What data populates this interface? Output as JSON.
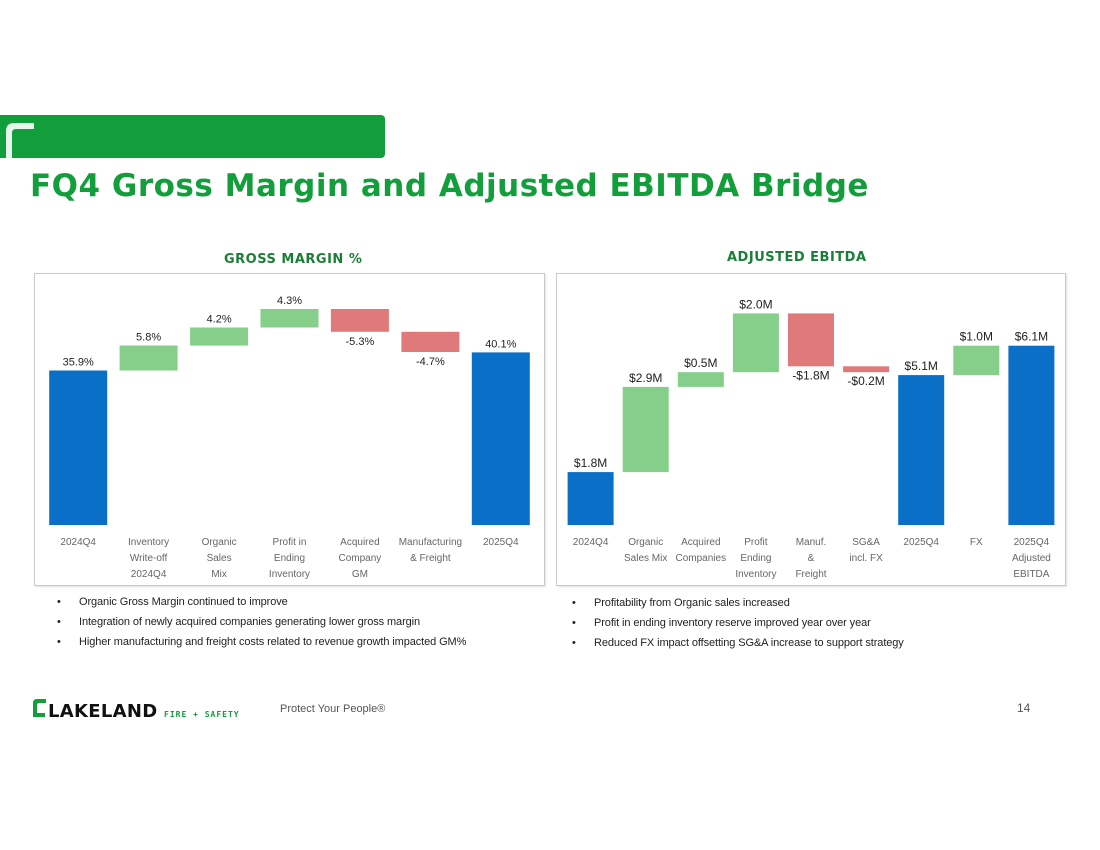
{
  "page": {
    "title": "FQ4 Gross Margin and Adjusted EBITDA Bridge",
    "page_number": "14"
  },
  "colors": {
    "brand_green": "#139e3c",
    "total_blue": "#0a6fc7",
    "increase_green": "#86cf8a",
    "decrease_red": "#e07a7a"
  },
  "footer": {
    "logo_text": "LAKELAND",
    "logo_sub": "FIRE + SAFETY",
    "tagline": "Protect Your People®"
  },
  "chart_data": [
    {
      "type": "bar",
      "subtype": "waterfall",
      "title": "GROSS MARGIN %",
      "categories": [
        [
          "2024Q4"
        ],
        [
          "Inventory",
          "Write-off",
          "2024Q4"
        ],
        [
          "Organic",
          "Sales",
          "Mix"
        ],
        [
          "Profit in",
          "Ending",
          "Inventory"
        ],
        [
          "Acquired",
          "Company",
          "GM"
        ],
        [
          "Manufacturing",
          "& Freight"
        ],
        [
          "2025Q4"
        ]
      ],
      "labels": [
        "35.9%",
        "5.8%",
        "4.2%",
        "4.3%",
        "-5.3%",
        "-4.7%",
        "40.1%"
      ],
      "bars": [
        {
          "kind": "total",
          "start": 0,
          "end": 35.9
        },
        {
          "kind": "increase",
          "start": 35.9,
          "end": 41.7
        },
        {
          "kind": "increase",
          "start": 41.7,
          "end": 45.9
        },
        {
          "kind": "increase",
          "start": 45.9,
          "end": 50.2
        },
        {
          "kind": "decrease",
          "start": 50.2,
          "end": 44.9
        },
        {
          "kind": "decrease",
          "start": 44.9,
          "end": 40.2
        },
        {
          "kind": "total",
          "start": 0,
          "end": 40.1
        }
      ],
      "ylim": [
        0,
        56
      ]
    },
    {
      "type": "bar",
      "subtype": "waterfall",
      "title": "ADJUSTED EBITDA",
      "categories": [
        [
          "2024Q4"
        ],
        [
          "Organic",
          "Sales Mix"
        ],
        [
          "Acquired",
          "Companies"
        ],
        [
          "Profit",
          "Ending",
          "Inventory"
        ],
        [
          "Manuf.",
          "&",
          "Freight"
        ],
        [
          "SG&A",
          "incl. FX"
        ],
        [
          "2025Q4"
        ],
        [
          "FX"
        ],
        [
          "2025Q4",
          "Adjusted",
          "EBITDA"
        ]
      ],
      "labels": [
        "$1.8M",
        "$2.9M",
        "$0.5M",
        "$2.0M",
        "-$1.8M",
        "-$0.2M",
        "$5.1M",
        "$1.0M",
        "$6.1M"
      ],
      "bars": [
        {
          "kind": "total",
          "start": 0,
          "end": 1.8
        },
        {
          "kind": "increase",
          "start": 1.8,
          "end": 4.7
        },
        {
          "kind": "increase",
          "start": 4.7,
          "end": 5.2
        },
        {
          "kind": "increase",
          "start": 5.2,
          "end": 7.2
        },
        {
          "kind": "decrease",
          "start": 7.2,
          "end": 5.4
        },
        {
          "kind": "decrease",
          "start": 5.4,
          "end": 5.2
        },
        {
          "kind": "total",
          "start": 0,
          "end": 5.1
        },
        {
          "kind": "increase",
          "start": 5.1,
          "end": 6.1
        },
        {
          "kind": "total",
          "start": 0,
          "end": 6.1
        }
      ],
      "ylim": [
        0,
        8.2
      ]
    }
  ],
  "bullets_left": [
    "Organic Gross Margin continued to improve",
    "Integration of newly acquired companies generating lower gross margin",
    "Higher manufacturing and freight costs  related to revenue growth impacted GM%"
  ],
  "bullets_right": [
    "Profitability from Organic sales increased",
    "Profit in ending inventory reserve improved year over year",
    "Reduced FX impact offsetting SG&A increase to support strategy"
  ]
}
